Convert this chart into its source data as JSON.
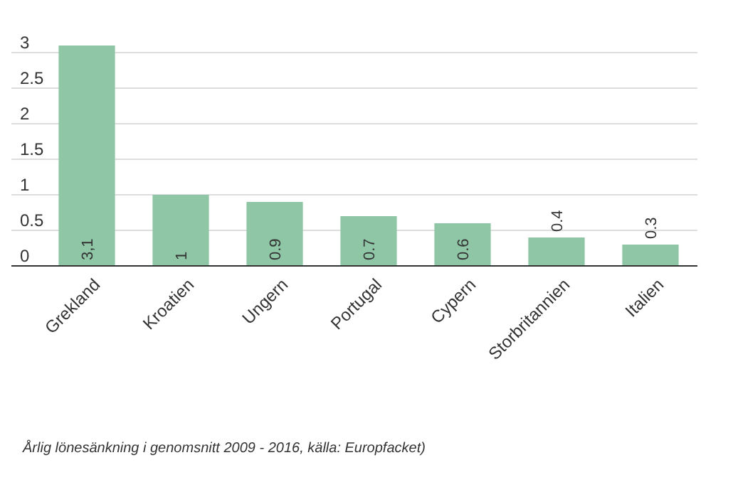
{
  "chart_data": {
    "type": "bar",
    "categories": [
      "Grekland",
      "Kroatien",
      "Ungern",
      "Portugal",
      "Cypern",
      "Storbritannien",
      "Italien"
    ],
    "values": [
      3.1,
      1,
      0.9,
      0.7,
      0.6,
      0.4,
      0.3
    ],
    "value_labels": [
      "3,1",
      "1",
      "0.9",
      "0.7",
      "0.6",
      "0.4",
      "0.3"
    ],
    "color": "#8ec6a6",
    "ylim": [
      0,
      3.1
    ],
    "yticks": [
      0,
      0.5,
      1,
      1.5,
      2,
      2.5,
      3
    ],
    "grid": "y",
    "annotations": [
      "Årlig lönesänkning i genomsnitt 2009 - 2016, källa:  Europfacket)"
    ]
  }
}
